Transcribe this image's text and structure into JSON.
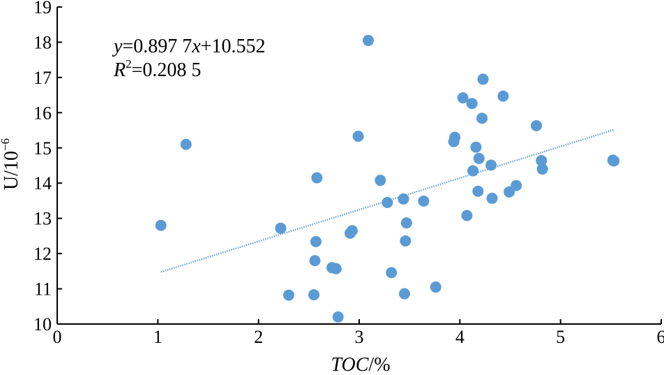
{
  "chart_data": {
    "type": "scatter",
    "title": "",
    "xlabel": {
      "main": "TOC",
      "unit": "/%"
    },
    "ylabel": {
      "main": "U/10",
      "exp": "−6"
    },
    "xlim": [
      0,
      6
    ],
    "ylim": [
      10,
      19
    ],
    "xticks": [
      "0",
      "1",
      "2",
      "3",
      "4",
      "5",
      "6"
    ],
    "yticks": [
      "10",
      "11",
      "12",
      "13",
      "14",
      "15",
      "16",
      "17",
      "18",
      "19"
    ],
    "grid": false,
    "point_color": "#5b9bd5",
    "trend_color": "#5b9bd5",
    "trendline": {
      "slope": 0.8977,
      "intercept": 10.552,
      "x_range": [
        1.03,
        5.53
      ]
    },
    "equation": {
      "y_var": "y",
      "eq": "=0.897 7",
      "x_var": "x",
      "rest": "+10.552"
    },
    "r_squared": {
      "r": "R",
      "sup": "2",
      "value": "=0.208 5"
    },
    "points": [
      [
        1.03,
        12.8
      ],
      [
        1.28,
        15.1
      ],
      [
        2.22,
        12.72
      ],
      [
        2.3,
        10.82
      ],
      [
        2.55,
        10.83
      ],
      [
        2.56,
        11.8
      ],
      [
        2.57,
        12.34
      ],
      [
        2.58,
        14.15
      ],
      [
        2.73,
        11.6
      ],
      [
        2.77,
        11.57
      ],
      [
        2.79,
        10.2
      ],
      [
        2.91,
        12.58
      ],
      [
        2.93,
        12.65
      ],
      [
        2.99,
        15.33
      ],
      [
        3.09,
        18.05
      ],
      [
        3.21,
        14.08
      ],
      [
        3.28,
        13.45
      ],
      [
        3.32,
        11.46
      ],
      [
        3.44,
        13.55
      ],
      [
        3.45,
        10.86
      ],
      [
        3.46,
        12.36
      ],
      [
        3.47,
        12.87
      ],
      [
        3.64,
        13.49
      ],
      [
        3.76,
        11.05
      ],
      [
        3.94,
        15.18
      ],
      [
        3.95,
        15.3
      ],
      [
        4.03,
        16.42
      ],
      [
        4.07,
        13.08
      ],
      [
        4.12,
        16.26
      ],
      [
        4.13,
        14.35
      ],
      [
        4.16,
        15.02
      ],
      [
        4.18,
        13.77
      ],
      [
        4.19,
        14.7
      ],
      [
        4.22,
        15.84
      ],
      [
        4.23,
        16.95
      ],
      [
        4.31,
        14.51
      ],
      [
        4.32,
        13.57
      ],
      [
        4.43,
        16.47
      ],
      [
        4.49,
        13.75
      ],
      [
        4.56,
        13.93
      ],
      [
        4.76,
        15.63
      ],
      [
        4.81,
        14.64
      ],
      [
        4.82,
        14.4
      ],
      [
        5.52,
        14.65
      ],
      [
        5.53,
        14.63
      ]
    ]
  }
}
